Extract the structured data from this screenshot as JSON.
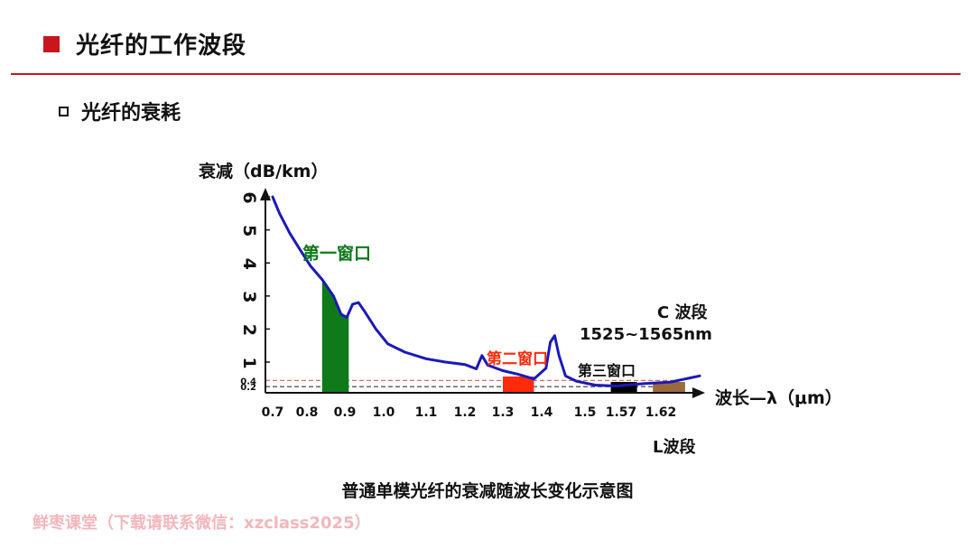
{
  "header": {
    "title": "光纤的工作波段"
  },
  "section": {
    "title": "光纤的衰耗"
  },
  "chart_data": {
    "type": "line",
    "ylabel": "衰减（dB/km）",
    "xlabel": "波长—λ（μm）",
    "y_ticks": [
      "6",
      "5",
      "4",
      "3",
      "2",
      "1"
    ],
    "y_minor_labels": [
      "0.4",
      "0.2"
    ],
    "x_ticks": [
      "0.7",
      "0.8",
      "0.9",
      "1.0",
      "1.1",
      "1.2",
      "1.3",
      "1.4",
      "1.5",
      "1.57",
      "1.62"
    ],
    "series": [
      {
        "points": [
          [
            0.7,
            6.0
          ],
          [
            0.72,
            5.5
          ],
          [
            0.75,
            4.9
          ],
          [
            0.78,
            4.4
          ],
          [
            0.81,
            3.9
          ],
          [
            0.84,
            3.5
          ],
          [
            0.87,
            3.0
          ],
          [
            0.89,
            2.45
          ],
          [
            0.905,
            2.35
          ],
          [
            0.92,
            2.75
          ],
          [
            0.935,
            2.8
          ],
          [
            0.95,
            2.55
          ],
          [
            0.98,
            2.0
          ],
          [
            1.01,
            1.55
          ],
          [
            1.05,
            1.3
          ],
          [
            1.1,
            1.1
          ],
          [
            1.15,
            1.0
          ],
          [
            1.2,
            0.92
          ],
          [
            1.23,
            0.78
          ],
          [
            1.245,
            1.2
          ],
          [
            1.26,
            0.9
          ],
          [
            1.3,
            0.72
          ],
          [
            1.34,
            0.6
          ],
          [
            1.38,
            0.45
          ],
          [
            1.41,
            0.8
          ],
          [
            1.42,
            1.6
          ],
          [
            1.43,
            1.8
          ],
          [
            1.44,
            1.2
          ],
          [
            1.455,
            0.55
          ],
          [
            1.48,
            0.38
          ],
          [
            1.52,
            0.25
          ],
          [
            1.56,
            0.22
          ],
          [
            1.6,
            0.3
          ],
          [
            1.64,
            0.35
          ],
          [
            1.67,
            0.45
          ],
          [
            1.7,
            0.55
          ]
        ]
      }
    ],
    "windows": [
      {
        "label": "第一窗口",
        "color": "#0f7a1a",
        "from": 0.84,
        "to": 0.91
      },
      {
        "label": "第二窗口",
        "color": "#ff2a0a",
        "from": 1.3,
        "to": 1.38
      },
      {
        "label": "第三窗口",
        "color": "#000000",
        "from": 1.55,
        "to": 1.59
      },
      {
        "label": "",
        "color": "#9b6a3a",
        "from": 1.61,
        "to": 1.67
      }
    ],
    "ref_lines": [
      {
        "y": 0.4,
        "color": "#e06c5a"
      },
      {
        "y": 0.2,
        "color": "#333333"
      }
    ],
    "annotations": {
      "c_band": "C 波段",
      "c_range": "1525~1565nm",
      "l_band": "L波段"
    },
    "colors": {
      "curve": "#1a1ab8",
      "window1_label": "#0f7a1a",
      "window2_label": "#ff2a0a",
      "window3_label": "#111111"
    }
  },
  "caption": "普通单模光纤的衰减随波长变化示意图",
  "watermark": "鲜枣课堂（下载请联系微信：xzclass2025）"
}
